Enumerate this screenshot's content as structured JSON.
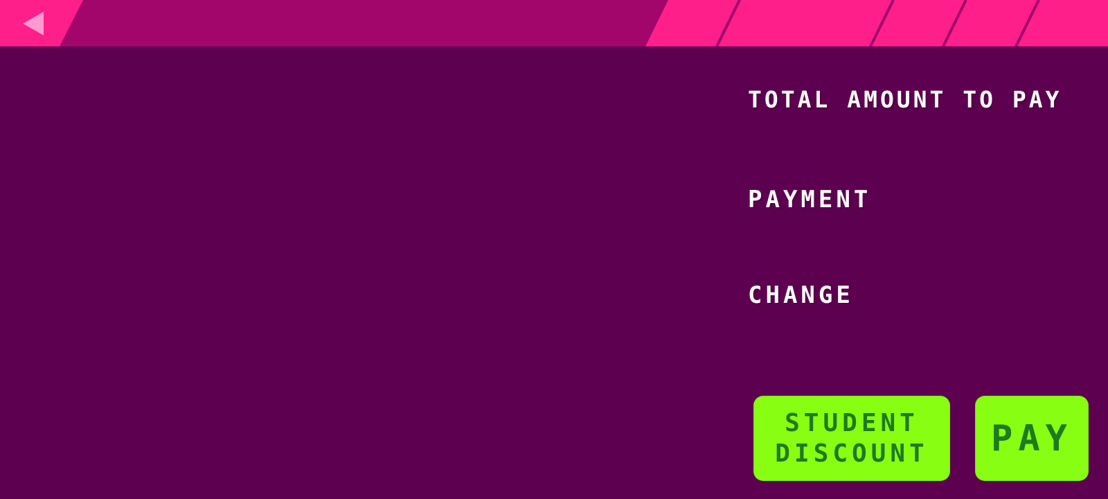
{
  "labels": {
    "total": "TOTAL AMOUNT TO PAY",
    "payment": "PAYMENT",
    "change": "CHANGE"
  },
  "buttons": {
    "student_discount": "STUDENT\nDISCOUNT",
    "pay": "PAY",
    "back_icon": "back-arrow-icon"
  },
  "colors": {
    "background": "#5d0050",
    "topbar_accent": "#ff1f8a",
    "topbar_panel": "#a3066b",
    "button": "#88ff12",
    "button_text": "#1e7a1e",
    "back_icon": "#ff9ad0"
  }
}
